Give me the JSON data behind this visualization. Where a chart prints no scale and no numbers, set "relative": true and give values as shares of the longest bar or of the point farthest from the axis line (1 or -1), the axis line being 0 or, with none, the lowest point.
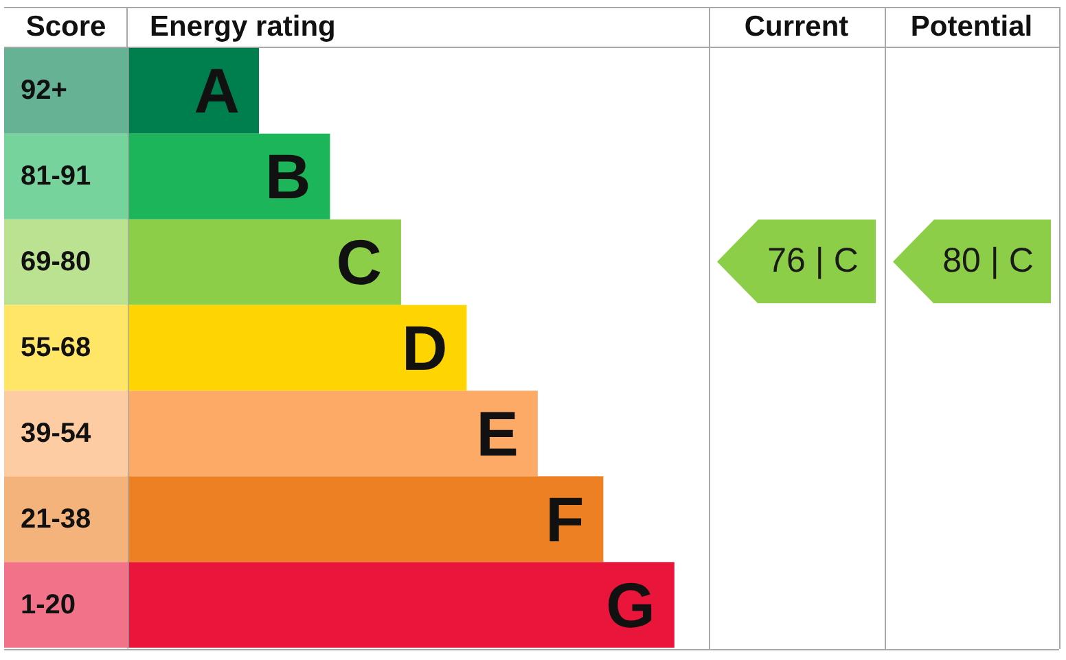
{
  "chart_data": {
    "type": "bar",
    "orientation": "horizontal",
    "relative": true,
    "ylabel": "Score",
    "xlabel": "Energy rating",
    "categories": [
      "92+",
      "81-91",
      "69-80",
      "55-68",
      "39-54",
      "21-38",
      "1-20"
    ],
    "values": [
      0.24,
      0.37,
      0.5,
      0.62,
      0.75,
      0.87,
      1
    ],
    "colors": [
      "#007f4e",
      "#1cb55a",
      "#8cce47",
      "#ffd500",
      "#fcaa65",
      "#ee8024",
      "#e9153b"
    ],
    "annotations": [
      "Current",
      "Potential",
      "76 | C",
      "80 | C",
      {
        "text": "A",
        "x": 0.24,
        "y": "92+"
      },
      {
        "text": "B",
        "x": 0.37,
        "y": "81-91"
      },
      {
        "text": "C",
        "x": 0.5,
        "y": "69-80"
      },
      {
        "text": "D",
        "x": 0.62,
        "y": "55-68"
      },
      {
        "text": "E",
        "x": 0.75,
        "y": "39-54"
      },
      {
        "text": "F",
        "x": 0.87,
        "y": "21-38"
      },
      {
        "text": "G",
        "x": 1,
        "y": "1-20"
      }
    ]
  }
}
